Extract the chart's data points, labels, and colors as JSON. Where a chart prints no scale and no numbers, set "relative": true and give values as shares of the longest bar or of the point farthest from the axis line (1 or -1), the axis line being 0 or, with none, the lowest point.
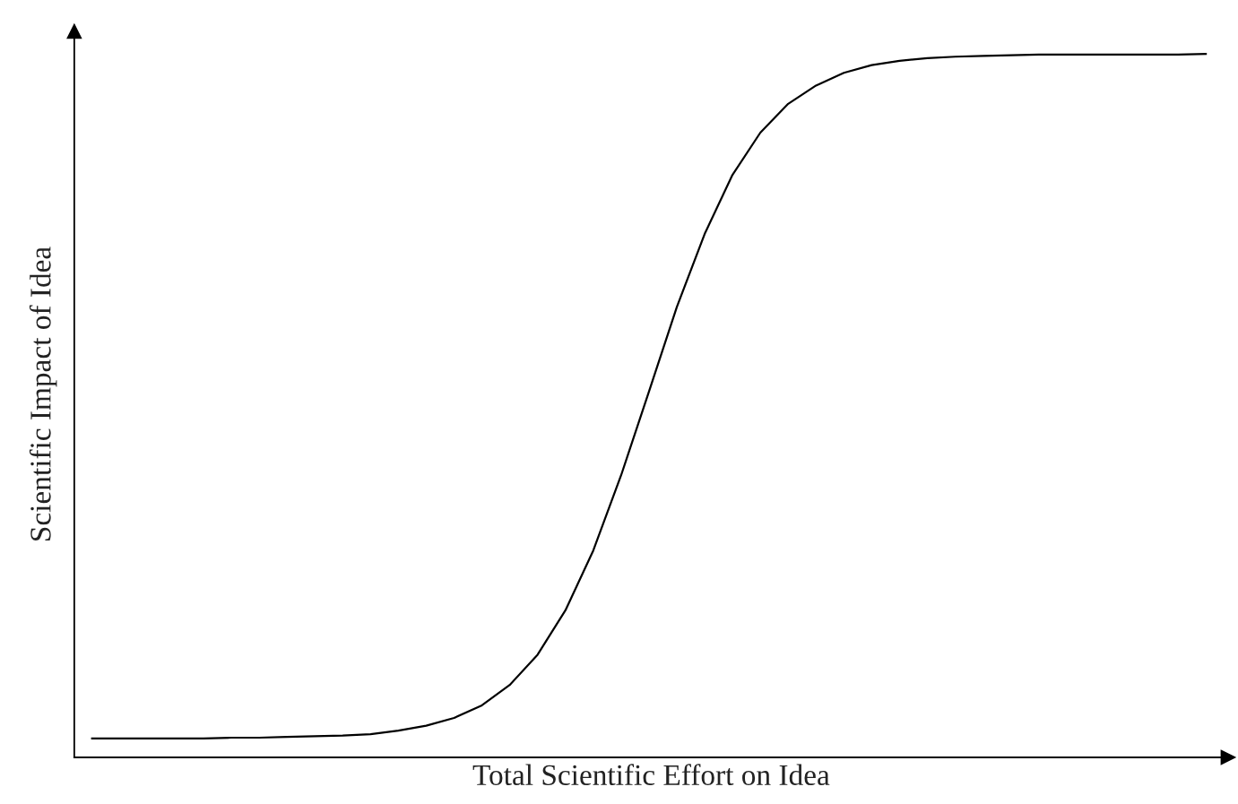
{
  "chart_data": {
    "type": "line",
    "relative": true,
    "xlabel": "Total Scientific Effort on Idea",
    "ylabel": "Scientific Impact of Idea",
    "categories": [
      null,
      null,
      null,
      null,
      null,
      null,
      null,
      null,
      null,
      null,
      null,
      null,
      null,
      null,
      null,
      null,
      null,
      null,
      null,
      null,
      null,
      null,
      null,
      null,
      null,
      null,
      null,
      null,
      null,
      null,
      null,
      null,
      null,
      null,
      null,
      null,
      null,
      null,
      null,
      null,
      null
    ],
    "series": [
      {
        "color": "#000000",
        "values": [
          0.027,
          0.027,
          0.027,
          0.027,
          0.027,
          0.028,
          0.028,
          0.029,
          0.03,
          0.031,
          0.033,
          0.038,
          0.045,
          0.056,
          0.074,
          0.103,
          0.146,
          0.209,
          0.294,
          0.401,
          0.52,
          0.64,
          0.744,
          0.828,
          0.888,
          0.929,
          0.955,
          0.973,
          0.984,
          0.99,
          0.994,
          0.996,
          0.997,
          0.998,
          0.999,
          0.999,
          0.999,
          0.999,
          0.999,
          0.999,
          1.0
        ]
      }
    ],
    "grid": false,
    "legend": false,
    "marker": "none",
    "line_style": "solid"
  }
}
